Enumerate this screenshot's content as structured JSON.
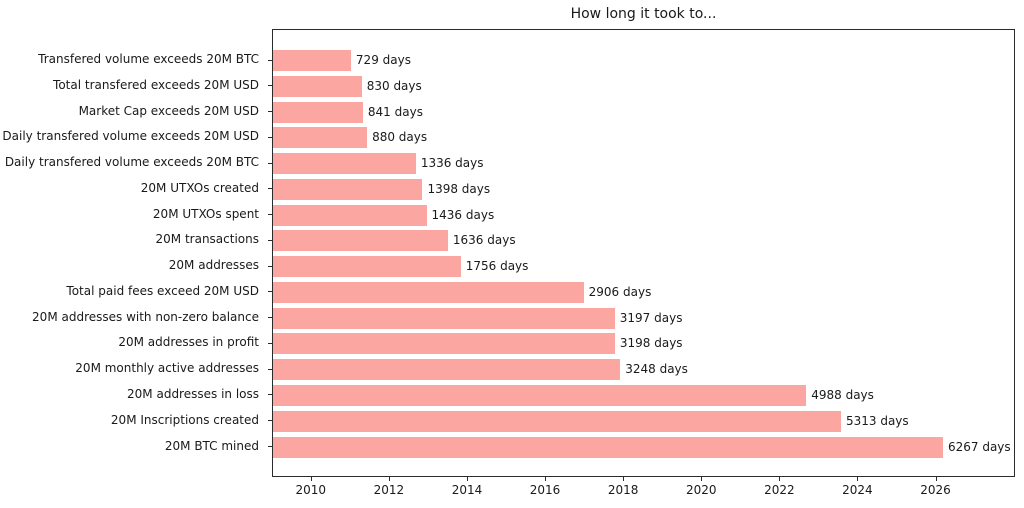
{
  "chart_data": {
    "type": "bar",
    "orientation": "horizontal",
    "title": "How long it took to...",
    "xlabel": "",
    "ylabel": "",
    "unit_suffix": " days",
    "categories": [
      "Transfered volume exceeds 20M BTC",
      "Total transfered exceeds 20M USD",
      "Market Cap exceeds 20M USD",
      "Daily transfered volume exceeds 20M USD",
      "Daily transfered volume exceeds 20M BTC",
      "20M UTXOs created",
      "20M UTXOs spent",
      "20M transactions",
      "20M addresses",
      "Total paid fees exceed 20M USD",
      "20M addresses with non-zero balance",
      "20M addresses in profit",
      "20M monthly active addresses",
      "20M addresses in loss",
      "20M Inscriptions created",
      "20M BTC mined"
    ],
    "values": [
      729,
      830,
      841,
      880,
      1336,
      1398,
      1436,
      1636,
      1756,
      2906,
      3197,
      3198,
      3248,
      4988,
      5313,
      6267
    ],
    "value_labels": [
      "729 days",
      "830 days",
      "841 days",
      "880 days",
      "1336 days",
      "1398 days",
      "1436 days",
      "1636 days",
      "1756 days",
      "2906 days",
      "3197 days",
      "3198 days",
      "3248 days",
      "4988 days",
      "5313 days",
      "6267 days"
    ],
    "bar_color": "#fba6a1",
    "axis_color": "#2b2b2b",
    "xlim_days": [
      0,
      6950
    ],
    "grid": false,
    "legend": null,
    "x_ticks": [
      {
        "label": "2010",
        "day": 363
      },
      {
        "label": "2012",
        "day": 1093
      },
      {
        "label": "2014",
        "day": 1824
      },
      {
        "label": "2016",
        "day": 2554
      },
      {
        "label": "2018",
        "day": 3285
      },
      {
        "label": "2020",
        "day": 4015
      },
      {
        "label": "2022",
        "day": 4746
      },
      {
        "label": "2024",
        "day": 5476
      },
      {
        "label": "2026",
        "day": 6207
      }
    ]
  }
}
